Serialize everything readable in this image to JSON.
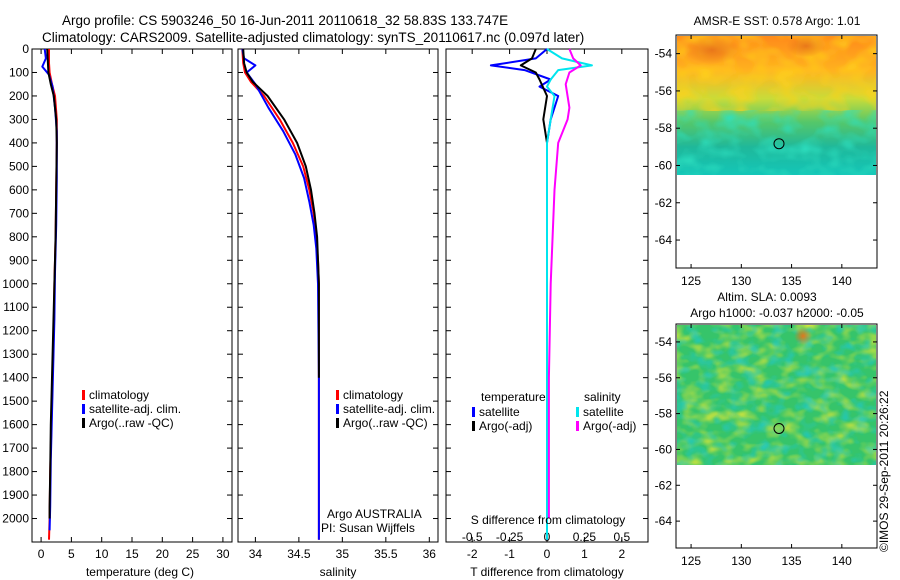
{
  "header": {
    "line1": "Argo profile: CS 5903246_50 16-Jun-2011 20110618_32 58.83S 133.747E",
    "line2": "Climatology: CARS2009. Satellite-adjusted climatology: synTS_20110617.nc (0.097d later)"
  },
  "credit": "©IMOS 29-Sep-2011 20:26:22",
  "colors": {
    "climatology": "#ff0000",
    "satellite": "#0000ff",
    "argo": "#000000",
    "sal_satellite": "#00e5ee",
    "sal_argo": "#ff00ff"
  },
  "chart_data": [
    {
      "id": "temperature",
      "type": "line",
      "xlabel": "temperature (deg C)",
      "xlim": [
        -1.5,
        31.5
      ],
      "ylim": [
        2100,
        0
      ],
      "xticks": [
        0,
        5,
        10,
        15,
        20,
        25,
        30
      ],
      "yticks": [
        0,
        100,
        200,
        300,
        400,
        500,
        600,
        700,
        800,
        900,
        1000,
        1100,
        1200,
        1300,
        1400,
        1500,
        1600,
        1700,
        1800,
        1900,
        2000
      ],
      "legend": [
        "climatology",
        "satellite-adj. clim.",
        "Argo(..raw -QC)"
      ],
      "series": [
        {
          "name": "climatology",
          "color": "#ff0000",
          "x": [
            1.3,
            1.3,
            1.4,
            1.8,
            2.3,
            2.6,
            2.6,
            2.5,
            2.4,
            2.2,
            2.1,
            1.9,
            1.7,
            1.5,
            1.4,
            1.3
          ],
          "y": [
            0,
            60,
            100,
            150,
            200,
            300,
            400,
            600,
            800,
            1000,
            1200,
            1400,
            1600,
            1800,
            2000,
            2090
          ]
        },
        {
          "name": "satellite-adj. clim.",
          "color": "#0000ff",
          "x": [
            0.6,
            0.8,
            0.2,
            1.3,
            1.9,
            2.3,
            2.6,
            2.6,
            2.5,
            2.3,
            2.2,
            2.0,
            1.8,
            1.6,
            1.5,
            1.4
          ],
          "y": [
            0,
            40,
            75,
            110,
            160,
            250,
            350,
            550,
            750,
            950,
            1150,
            1350,
            1550,
            1750,
            1950,
            2050
          ]
        },
        {
          "name": "Argo(..raw -QC)",
          "color": "#000000",
          "x": [
            1.0,
            1.1,
            1.2,
            1.6,
            2.1,
            2.5,
            2.6,
            2.5,
            2.4,
            2.2,
            2.0,
            1.8,
            1.6,
            1.5,
            1.4,
            1.4
          ],
          "y": [
            0,
            50,
            100,
            150,
            200,
            300,
            400,
            600,
            800,
            1000,
            1200,
            1400,
            1600,
            1800,
            1950,
            2000
          ]
        }
      ]
    },
    {
      "id": "salinity",
      "type": "line",
      "xlabel": "salinity",
      "xlim": [
        33.8,
        36.1
      ],
      "ylim": [
        2100,
        0
      ],
      "xticks": [
        34,
        34.5,
        35,
        35.5,
        36
      ],
      "xticklabels": [
        "34",
        "34.5",
        "35",
        "35.5",
        "36"
      ],
      "legend": [
        "climatology",
        "satellite-adj. clim.",
        "Argo(..raw -QC)"
      ],
      "annotation": [
        "Argo AUSTRALIA",
        "PI: Susan Wijffels"
      ],
      "series": [
        {
          "name": "climatology",
          "color": "#ff0000",
          "x": [
            33.85,
            33.86,
            33.88,
            33.95,
            34.1,
            34.28,
            34.43,
            34.55,
            34.62,
            34.67,
            34.7,
            34.72,
            34.73,
            34.73,
            34.73,
            34.73
          ],
          "y": [
            0,
            60,
            100,
            140,
            200,
            300,
            400,
            500,
            600,
            700,
            800,
            900,
            1000,
            1400,
            1800,
            2090
          ]
        },
        {
          "name": "satellite-adj. clim.",
          "color": "#0000ff",
          "x": [
            33.85,
            33.87,
            34.0,
            33.9,
            34.0,
            34.15,
            34.32,
            34.46,
            34.56,
            34.62,
            34.67,
            34.7,
            34.72,
            34.73,
            34.73,
            34.73
          ],
          "y": [
            0,
            40,
            70,
            100,
            150,
            250,
            350,
            450,
            550,
            650,
            750,
            850,
            1000,
            1400,
            1800,
            2090
          ]
        },
        {
          "name": "Argo(..raw -QC)",
          "color": "#000000",
          "x": [
            33.86,
            33.87,
            33.9,
            33.97,
            34.14,
            34.33,
            34.48,
            34.58,
            34.64,
            34.68,
            34.71,
            34.72,
            34.73,
            34.73
          ],
          "y": [
            0,
            60,
            100,
            140,
            200,
            300,
            400,
            500,
            600,
            700,
            800,
            900,
            1000,
            1400
          ]
        }
      ]
    },
    {
      "id": "differences",
      "type": "line",
      "xlabel": "T difference from climatology",
      "xlabel2": "S difference from climatology",
      "xlim": [
        -2.7,
        2.7
      ],
      "ylim": [
        2100,
        0
      ],
      "xticks": [
        -2,
        -1,
        0,
        1,
        2
      ],
      "xticklabels": [
        "-2",
        "-1",
        "0",
        "1",
        "2"
      ],
      "sticks": [
        -0.5,
        -0.25,
        0,
        0.25,
        0.5
      ],
      "sticklabels": [
        "-0.5",
        "-0.25",
        "0",
        "0.25",
        "0.5"
      ],
      "legend_temperature": {
        "title": "temperature",
        "items": [
          "satellite",
          "Argo(-adj)"
        ]
      },
      "legend_salinity": {
        "title": "salinity",
        "items": [
          "satellite",
          "Argo(-adj)"
        ]
      },
      "series": [
        {
          "name": "temperature satellite",
          "color": "#0000ff",
          "x": [
            0,
            -0.3,
            -1.5,
            -0.6,
            0.1,
            -0.2,
            0.3,
            0.1,
            0,
            0,
            0,
            0,
            0,
            0,
            0
          ],
          "y": [
            0,
            40,
            70,
            90,
            130,
            160,
            200,
            300,
            400,
            600,
            800,
            1000,
            1400,
            1800,
            2090
          ]
        },
        {
          "name": "temperature Argo(-adj)",
          "color": "#000000",
          "x": [
            -0.3,
            -0.4,
            -0.7,
            -0.3,
            -0.2,
            0,
            -0.1,
            0,
            0,
            0,
            0,
            0,
            0,
            0
          ],
          "y": [
            0,
            40,
            70,
            100,
            130,
            200,
            300,
            400,
            600,
            800,
            1000,
            1400,
            1800,
            2000
          ]
        },
        {
          "name": "salinity satellite",
          "color": "#00e5ee",
          "x": [
            0,
            0.4,
            1.2,
            0.3,
            0.1,
            0,
            0.2,
            0.1,
            0,
            0,
            0,
            0,
            0,
            0,
            0
          ],
          "y": [
            0,
            40,
            70,
            90,
            130,
            160,
            200,
            300,
            400,
            600,
            800,
            1000,
            1400,
            1800,
            2090
          ]
        },
        {
          "name": "salinity Argo(-adj)",
          "color": "#ff00ff",
          "x": [
            0.6,
            0.7,
            0.9,
            0.6,
            0.5,
            0.6,
            0.55,
            0.3,
            0.2,
            0.15,
            0.1,
            0.05,
            0.05,
            0.05
          ],
          "y": [
            0,
            40,
            70,
            100,
            150,
            250,
            300,
            400,
            600,
            800,
            1000,
            1400,
            1800,
            2000
          ]
        }
      ]
    },
    {
      "id": "sst-map",
      "type": "heatmap",
      "title": "AMSR-E SST: 0.578 Argo: 1.01",
      "xlim": [
        123.5,
        143.5
      ],
      "ylim": [
        -65.5,
        -53
      ],
      "xticks": [
        125,
        130,
        135,
        140
      ],
      "yticks": [
        -54,
        -56,
        -58,
        -60,
        -62,
        -64
      ],
      "marker": {
        "lon": 133.75,
        "lat": -58.83
      }
    },
    {
      "id": "sla-map",
      "type": "heatmap",
      "title": "Altim. SLA: 0.0093",
      "subtitle": "Argo h1000: -0.037 h2000: -0.05",
      "xlim": [
        123.5,
        143.5
      ],
      "ylim": [
        -65.5,
        -53
      ],
      "xticks": [
        125,
        130,
        135,
        140
      ],
      "yticks": [
        -54,
        -56,
        -58,
        -60,
        -62,
        -64
      ],
      "marker": {
        "lon": 133.75,
        "lat": -58.83
      }
    }
  ]
}
